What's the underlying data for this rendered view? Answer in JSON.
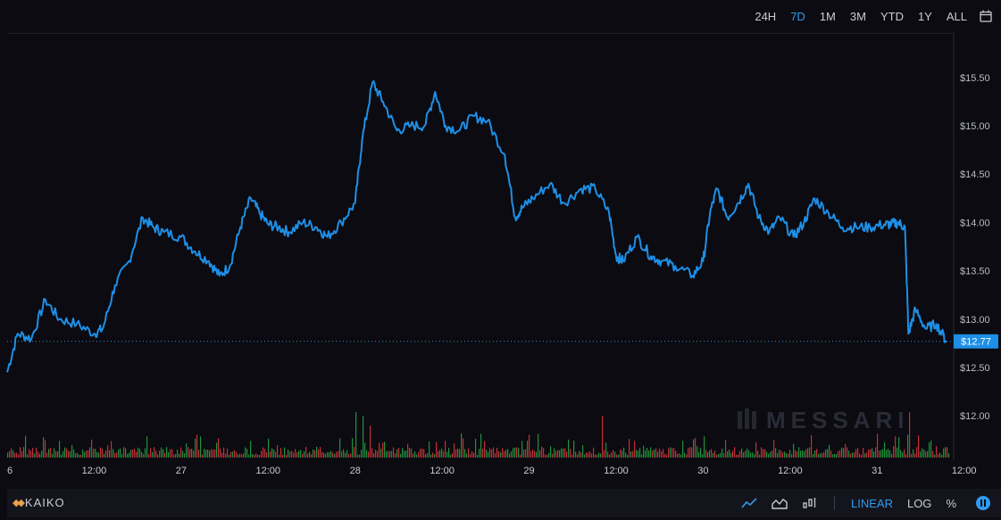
{
  "toolbar": {
    "ranges": [
      "24H",
      "7D",
      "1M",
      "3M",
      "YTD",
      "1Y",
      "ALL"
    ],
    "active_range": "7D"
  },
  "watermark": "MESSARI",
  "colors": {
    "line": "#1e8fe6",
    "up": "#27a844",
    "down": "#e0393f",
    "accent": "#2f9bf0"
  },
  "footer": {
    "brand": "KAIKO",
    "scales": [
      "LINEAR",
      "LOG",
      "%"
    ],
    "active_scale": "LINEAR"
  },
  "chart_data": {
    "type": "line",
    "title": "",
    "xlabel": "",
    "ylabel": "",
    "y_ticks": [
      "$15.50",
      "$15.00",
      "$14.50",
      "$14.00",
      "$13.50",
      "$13.00",
      "$12.50",
      "$12.00"
    ],
    "x_ticks": [
      "6",
      "12:00",
      "27",
      "12:00",
      "28",
      "12:00",
      "29",
      "12:00",
      "30",
      "12:00",
      "31",
      "12:00"
    ],
    "ylim": [
      11.55,
      15.95
    ],
    "current_price": 12.77,
    "current_price_label": "$12.77",
    "price": [
      [
        0.0,
        12.45
      ],
      [
        0.06,
        12.85
      ],
      [
        0.14,
        12.8
      ],
      [
        0.22,
        13.2
      ],
      [
        0.3,
        13.0
      ],
      [
        0.4,
        12.95
      ],
      [
        0.5,
        12.85
      ],
      [
        0.55,
        12.9
      ],
      [
        0.62,
        13.35
      ],
      [
        0.7,
        13.6
      ],
      [
        0.78,
        14.05
      ],
      [
        0.84,
        13.95
      ],
      [
        0.9,
        13.9
      ],
      [
        1.0,
        13.85
      ],
      [
        1.08,
        13.7
      ],
      [
        1.16,
        13.6
      ],
      [
        1.22,
        13.45
      ],
      [
        1.28,
        13.55
      ],
      [
        1.34,
        13.95
      ],
      [
        1.4,
        14.25
      ],
      [
        1.45,
        14.1
      ],
      [
        1.5,
        13.98
      ],
      [
        1.56,
        13.95
      ],
      [
        1.62,
        13.9
      ],
      [
        1.7,
        14.0
      ],
      [
        1.78,
        13.95
      ],
      [
        1.84,
        13.85
      ],
      [
        1.92,
        14.0
      ],
      [
        2.0,
        14.2
      ],
      [
        2.04,
        14.85
      ],
      [
        2.1,
        15.45
      ],
      [
        2.16,
        15.25
      ],
      [
        2.24,
        14.95
      ],
      [
        2.32,
        15.0
      ],
      [
        2.4,
        15.0
      ],
      [
        2.46,
        15.35
      ],
      [
        2.52,
        15.0
      ],
      [
        2.6,
        14.95
      ],
      [
        2.68,
        15.1
      ],
      [
        2.76,
        15.05
      ],
      [
        2.86,
        14.7
      ],
      [
        2.92,
        14.05
      ],
      [
        2.96,
        14.15
      ],
      [
        3.02,
        14.25
      ],
      [
        3.12,
        14.4
      ],
      [
        3.2,
        14.2
      ],
      [
        3.3,
        14.35
      ],
      [
        3.38,
        14.35
      ],
      [
        3.46,
        14.1
      ],
      [
        3.5,
        13.65
      ],
      [
        3.54,
        13.6
      ],
      [
        3.62,
        13.85
      ],
      [
        3.7,
        13.65
      ],
      [
        3.76,
        13.6
      ],
      [
        3.84,
        13.55
      ],
      [
        3.94,
        13.45
      ],
      [
        4.0,
        13.6
      ],
      [
        4.04,
        14.1
      ],
      [
        4.08,
        14.35
      ],
      [
        4.14,
        14.05
      ],
      [
        4.2,
        14.2
      ],
      [
        4.26,
        14.4
      ],
      [
        4.32,
        14.05
      ],
      [
        4.38,
        13.9
      ],
      [
        4.44,
        14.05
      ],
      [
        4.52,
        13.85
      ],
      [
        4.58,
        14.0
      ],
      [
        4.64,
        14.25
      ],
      [
        4.72,
        14.1
      ],
      [
        4.8,
        13.95
      ],
      [
        4.88,
        13.95
      ],
      [
        4.96,
        13.95
      ],
      [
        5.04,
        13.98
      ],
      [
        5.08,
        13.98
      ],
      [
        5.12,
        14.0
      ],
      [
        5.16,
        13.95
      ],
      [
        5.18,
        12.85
      ],
      [
        5.22,
        13.1
      ],
      [
        5.28,
        12.9
      ],
      [
        5.34,
        12.95
      ],
      [
        5.4,
        12.77
      ]
    ],
    "volume": {
      "note": "volume histogram bars, green = up, red = down",
      "spikes": [
        [
          0.3,
          0.22,
          "up"
        ],
        [
          0.8,
          0.28,
          "up"
        ],
        [
          1.08,
          0.25,
          "up"
        ],
        [
          1.5,
          0.25,
          "up"
        ],
        [
          2.0,
          0.6,
          "up"
        ],
        [
          2.04,
          0.55,
          "up"
        ],
        [
          2.08,
          0.42,
          "down"
        ],
        [
          2.3,
          0.18,
          "down"
        ],
        [
          2.92,
          0.35,
          "down"
        ],
        [
          3.0,
          0.3,
          "down"
        ],
        [
          3.42,
          0.55,
          "down"
        ],
        [
          3.6,
          0.22,
          "down"
        ],
        [
          4.0,
          0.28,
          "up"
        ],
        [
          4.3,
          0.2,
          "down"
        ],
        [
          4.52,
          0.18,
          "up"
        ],
        [
          5.1,
          0.28,
          "down"
        ],
        [
          5.18,
          0.6,
          "down"
        ],
        [
          5.22,
          0.45,
          "down"
        ],
        [
          5.3,
          0.2,
          "up"
        ]
      ]
    }
  }
}
